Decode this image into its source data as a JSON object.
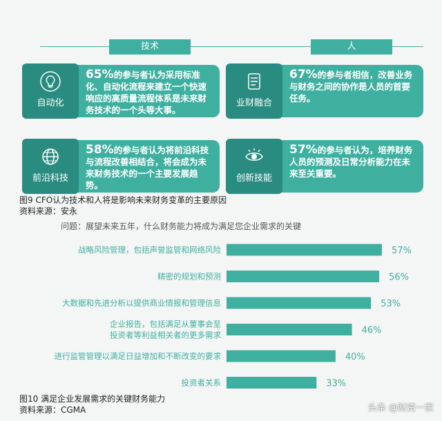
{
  "infographic": {
    "header_tech": "技术",
    "header_people": "人",
    "cards": [
      {
        "badge": "自动化",
        "percent": "65%",
        "text": "的参与者认为采用标准化、自动化流程来建立一个快速响应的高质量流程体系是未来财务技术的一个头等大事。",
        "icon": "lightbulb-icon"
      },
      {
        "badge": "业财融合",
        "percent": "67%",
        "text": "的参与者相信，改善业务与财务之间的协作是人员的首要任务。",
        "icon": "document-icon"
      },
      {
        "badge": "前沿科技",
        "percent": "58%",
        "text": "的参与者认为将前沿科技与流程改善相结合，将会成为未来财务技术的一个主要发展趋势。",
        "icon": "globe-icon"
      },
      {
        "badge": "创新技能",
        "percent": "57%",
        "text": "的参与者认为，培养财务人员的预测及日常分析能力在未来至关重要。",
        "icon": "eye-icon"
      }
    ],
    "caption": "图9  CFO认为技术和人将是影响未来财务变革的主要原因",
    "source": "资料来源：安永"
  },
  "chart_data": {
    "type": "bar",
    "orientation": "horizontal",
    "question": "问题：展望未来五年，什么财务能力将成为满足您企业需求的关键",
    "categories": [
      [
        "战略风险管理，包括声誉监管和网络风险"
      ],
      [
        "精密的规划和预测"
      ],
      [
        "大数据和先进分析以提供商业情报和管理信息"
      ],
      [
        "企业报告，包括满足从董事会至",
        "投资者等利益相关者的更多需求"
      ],
      [
        "进行监管管理以满足日益增加和不断改变的要求"
      ],
      [
        "投资者关系"
      ]
    ],
    "values": [
      57,
      56,
      53,
      46,
      40,
      33
    ],
    "value_labels": [
      "57%",
      "56%",
      "53%",
      "46%",
      "40%",
      "33%"
    ],
    "xlim": [
      0,
      60
    ],
    "bar_color": "#3fb0a0",
    "caption": "图10  满足企业发展需求的关键财务能力",
    "source": "资料来源：CGMA"
  },
  "watermark": "头条 @财资一家"
}
